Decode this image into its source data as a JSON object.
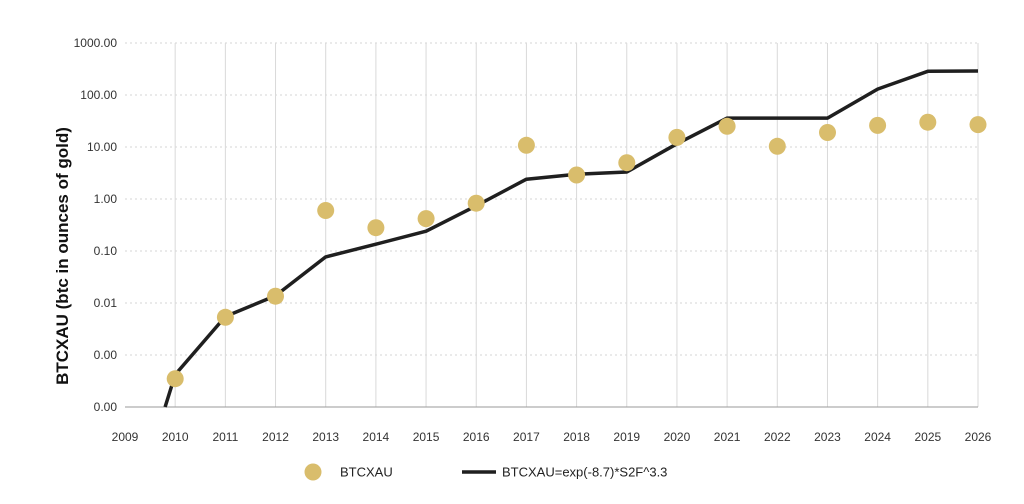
{
  "chart_data": {
    "type": "scatter",
    "title": "",
    "xlabel": "",
    "ylabel": "BTCXAU (btc in ounces of gold)",
    "y_scale": "log",
    "ylim": [
      0.0001,
      1000
    ],
    "xlim": [
      2009,
      2026
    ],
    "grid": true,
    "legend_position": "bottom",
    "x_ticks": [
      "2009",
      "2010",
      "2011",
      "2012",
      "2013",
      "2014",
      "2015",
      "2016",
      "2017",
      "2018",
      "2019",
      "2020",
      "2021",
      "2022",
      "2023",
      "2024",
      "2025",
      "2026"
    ],
    "y_ticks": [
      {
        "value": 0.0001,
        "label": "0.00"
      },
      {
        "value": 0.001,
        "label": "0.00"
      },
      {
        "value": 0.01,
        "label": "0.01"
      },
      {
        "value": 0.1,
        "label": "0.10"
      },
      {
        "value": 1,
        "label": "1.00"
      },
      {
        "value": 10,
        "label": "10.00"
      },
      {
        "value": 100,
        "label": "100.00"
      },
      {
        "value": 1000,
        "label": "1000.00"
      }
    ],
    "series": [
      {
        "name": "BTCXAU",
        "kind": "scatter",
        "color": "#D9BD6C",
        "points": [
          {
            "x": 2010,
            "y": 0.00035
          },
          {
            "x": 2011,
            "y": 0.0053
          },
          {
            "x": 2012,
            "y": 0.0135
          },
          {
            "x": 2013,
            "y": 0.6
          },
          {
            "x": 2014,
            "y": 0.28
          },
          {
            "x": 2015,
            "y": 0.42
          },
          {
            "x": 2016,
            "y": 0.83
          },
          {
            "x": 2017,
            "y": 10.8
          },
          {
            "x": 2018,
            "y": 2.9
          },
          {
            "x": 2019,
            "y": 5.0
          },
          {
            "x": 2020,
            "y": 15.3
          },
          {
            "x": 2021,
            "y": 25
          },
          {
            "x": 2022,
            "y": 10.3
          },
          {
            "x": 2023,
            "y": 19
          },
          {
            "x": 2024,
            "y": 26
          },
          {
            "x": 2025,
            "y": 30
          },
          {
            "x": 2026,
            "y": 27
          }
        ]
      },
      {
        "name": "BTCXAU=exp(-8.7)*S2F^3.3",
        "kind": "line",
        "color": "#1F1F1F",
        "points": [
          {
            "x": 2009.8,
            "y": 0.0001
          },
          {
            "x": 2010,
            "y": 0.00042
          },
          {
            "x": 2011,
            "y": 0.0055
          },
          {
            "x": 2012,
            "y": 0.0138
          },
          {
            "x": 2013,
            "y": 0.077
          },
          {
            "x": 2014,
            "y": 0.135
          },
          {
            "x": 2015,
            "y": 0.24
          },
          {
            "x": 2016,
            "y": 0.74
          },
          {
            "x": 2017,
            "y": 2.4
          },
          {
            "x": 2018,
            "y": 3.0
          },
          {
            "x": 2019,
            "y": 3.3
          },
          {
            "x": 2020,
            "y": 11.5
          },
          {
            "x": 2021,
            "y": 36
          },
          {
            "x": 2022,
            "y": 36
          },
          {
            "x": 2023,
            "y": 36
          },
          {
            "x": 2024,
            "y": 130
          },
          {
            "x": 2025,
            "y": 285
          },
          {
            "x": 2026,
            "y": 290
          }
        ]
      }
    ]
  }
}
